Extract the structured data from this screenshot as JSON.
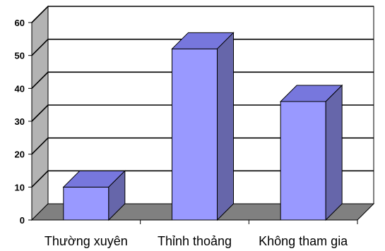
{
  "chart_data": {
    "type": "bar",
    "style": "3d",
    "categories": [
      "Thường xuyên",
      "Thỉnh thoảng",
      "Không tham gia"
    ],
    "values": [
      10,
      52,
      36
    ],
    "ylim": [
      0,
      60
    ],
    "yticks": [
      0,
      10,
      20,
      30,
      40,
      50,
      60
    ],
    "grid": true,
    "legend": "none",
    "colors": {
      "bar_front": "#9999ff",
      "bar_top": "#7777dd",
      "bar_side": "#6666aa",
      "back_wall": "#ffffff",
      "side_wall": "#b3b3b3",
      "floor": "#808080",
      "gridline": "#000000"
    }
  }
}
